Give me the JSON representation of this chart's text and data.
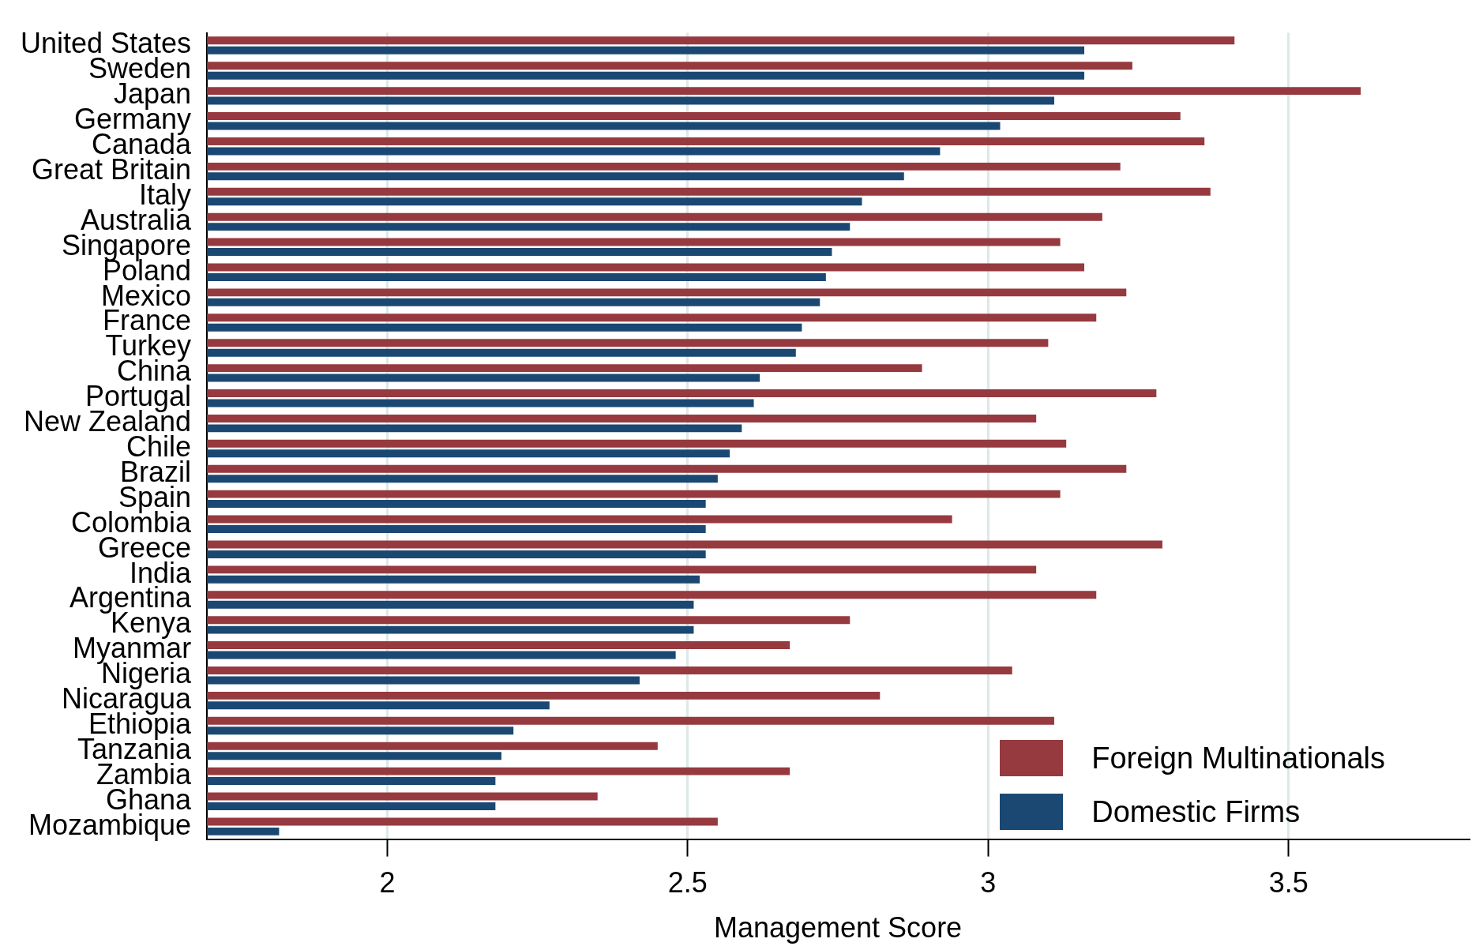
{
  "chart_data": {
    "type": "bar",
    "orientation": "horizontal",
    "xlabel": "Management Score",
    "categories": [
      "United States",
      "Sweden",
      "Japan",
      "Germany",
      "Canada",
      "Great Britain",
      "Italy",
      "Australia",
      "Singapore",
      "Poland",
      "Mexico",
      "France",
      "Turkey",
      "China",
      "Portugal",
      "New Zealand",
      "Chile",
      "Brazil",
      "Spain",
      "Colombia",
      "Greece",
      "India",
      "Argentina",
      "Kenya",
      "Myanmar",
      "Nigeria",
      "Nicaragua",
      "Ethiopia",
      "Tanzania",
      "Zambia",
      "Ghana",
      "Mozambique"
    ],
    "series": [
      {
        "name": "Foreign Multinationals",
        "color": "#963a40",
        "values": [
          3.41,
          3.24,
          3.62,
          3.32,
          3.36,
          3.22,
          3.37,
          3.19,
          3.12,
          3.16,
          3.23,
          3.18,
          3.1,
          2.89,
          3.28,
          3.08,
          3.13,
          3.23,
          3.12,
          2.94,
          3.29,
          3.08,
          3.18,
          2.77,
          2.67,
          3.04,
          2.82,
          3.11,
          2.45,
          2.67,
          2.35,
          2.55
        ]
      },
      {
        "name": "Domestic Firms",
        "color": "#1b4873",
        "values": [
          3.16,
          3.16,
          3.11,
          3.02,
          2.92,
          2.86,
          2.79,
          2.77,
          2.74,
          2.73,
          2.72,
          2.69,
          2.68,
          2.62,
          2.61,
          2.59,
          2.57,
          2.55,
          2.53,
          2.53,
          2.53,
          2.52,
          2.51,
          2.51,
          2.48,
          2.42,
          2.27,
          2.21,
          2.19,
          2.18,
          2.18,
          1.82
        ]
      }
    ],
    "xlim": [
      1.7,
      3.8
    ],
    "xticks": [
      2,
      2.5,
      3,
      3.5
    ],
    "grid": "x",
    "legend": "bottom right"
  }
}
